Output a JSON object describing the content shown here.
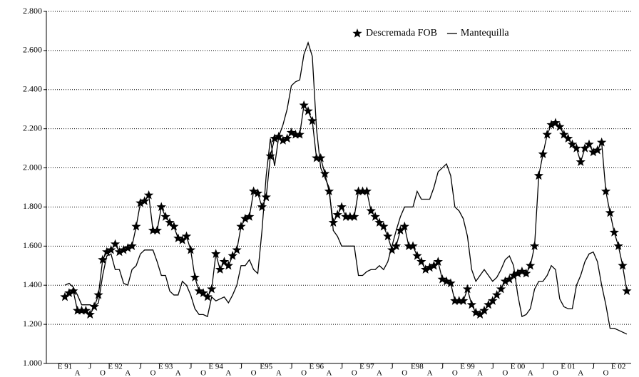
{
  "chart_data": {
    "type": "line",
    "categories": [
      "E 91",
      null,
      null,
      "A",
      null,
      null,
      "J",
      null,
      null,
      "O",
      null,
      null,
      "E 92",
      null,
      null,
      "A",
      null,
      null,
      "J",
      null,
      null,
      "O",
      null,
      null,
      "E 93",
      null,
      null,
      "A",
      null,
      null,
      "J",
      null,
      null,
      "O",
      null,
      null,
      "E 94",
      null,
      null,
      "A",
      null,
      null,
      "J",
      null,
      null,
      "O",
      null,
      null,
      "E95",
      null,
      null,
      "A",
      null,
      null,
      "J",
      null,
      null,
      "O",
      null,
      null,
      "E 96",
      null,
      null,
      "A",
      null,
      null,
      "J",
      null,
      null,
      "O",
      null,
      null,
      "E 97",
      null,
      null,
      "A",
      null,
      null,
      "J",
      null,
      null,
      "O",
      null,
      null,
      "E98",
      null,
      null,
      "A",
      null,
      null,
      "J",
      null,
      null,
      "O",
      null,
      null,
      "E 99",
      null,
      null,
      "A",
      null,
      null,
      "J",
      null,
      null,
      "O",
      null,
      null,
      "E 00",
      null,
      null,
      "A",
      null,
      null,
      "J",
      null,
      null,
      "O",
      null,
      null,
      "E 01",
      null,
      null,
      "A",
      null,
      null,
      "J",
      null,
      null,
      "O",
      null,
      null,
      "E 02",
      null,
      null
    ],
    "series": [
      {
        "name": "Descremada FOB",
        "color": "#000000",
        "marker": "star",
        "values": [
          1.34,
          1.36,
          1.37,
          1.27,
          1.27,
          1.27,
          1.25,
          1.29,
          1.35,
          1.53,
          1.57,
          1.58,
          1.61,
          1.57,
          1.58,
          1.59,
          1.6,
          1.7,
          1.82,
          1.83,
          1.86,
          1.68,
          1.68,
          1.8,
          1.75,
          1.72,
          1.7,
          1.64,
          1.63,
          1.65,
          1.58,
          1.44,
          1.37,
          1.36,
          1.34,
          1.38,
          1.56,
          1.48,
          1.52,
          1.5,
          1.55,
          1.58,
          1.7,
          1.74,
          1.75,
          1.88,
          1.87,
          1.8,
          1.85,
          2.06,
          2.15,
          2.16,
          2.14,
          2.15,
          2.18,
          2.17,
          2.17,
          2.32,
          2.29,
          2.24,
          2.05,
          2.05,
          1.97,
          1.88,
          1.72,
          1.76,
          1.8,
          1.75,
          1.75,
          1.75,
          1.88,
          1.88,
          1.88,
          1.78,
          1.75,
          1.72,
          1.7,
          1.65,
          1.58,
          1.6,
          1.68,
          1.7,
          1.6,
          1.6,
          1.55,
          1.52,
          1.48,
          1.49,
          1.5,
          1.52,
          1.43,
          1.42,
          1.41,
          1.32,
          1.32,
          1.32,
          1.38,
          1.3,
          1.26,
          1.25,
          1.27,
          1.3,
          1.32,
          1.35,
          1.38,
          1.42,
          1.43,
          1.45,
          1.46,
          1.47,
          1.46,
          1.5,
          1.6,
          1.96,
          2.07,
          2.17,
          2.22,
          2.23,
          2.21,
          2.17,
          2.15,
          2.12,
          2.1,
          2.03,
          2.1,
          2.12,
          2.08,
          2.09,
          2.13,
          1.88,
          1.77,
          1.67,
          1.6,
          1.5,
          1.37
        ]
      },
      {
        "name": "Mantequilla",
        "color": "#000000",
        "marker": "none",
        "values": [
          1.4,
          1.41,
          1.39,
          1.35,
          1.3,
          1.3,
          1.3,
          1.29,
          1.31,
          1.45,
          1.55,
          1.56,
          1.48,
          1.48,
          1.41,
          1.4,
          1.48,
          1.5,
          1.56,
          1.58,
          1.58,
          1.58,
          1.52,
          1.45,
          1.45,
          1.37,
          1.35,
          1.35,
          1.42,
          1.4,
          1.35,
          1.28,
          1.25,
          1.25,
          1.24,
          1.34,
          1.32,
          1.33,
          1.34,
          1.31,
          1.35,
          1.4,
          1.5,
          1.5,
          1.53,
          1.48,
          1.46,
          1.68,
          1.96,
          2.15,
          2.01,
          2.16,
          2.22,
          2.3,
          2.42,
          2.44,
          2.45,
          2.58,
          2.64,
          2.57,
          2.2,
          2.0,
          1.95,
          1.9,
          1.68,
          1.65,
          1.6,
          1.6,
          1.6,
          1.6,
          1.45,
          1.45,
          1.47,
          1.48,
          1.48,
          1.5,
          1.48,
          1.52,
          1.6,
          1.68,
          1.75,
          1.8,
          1.8,
          1.8,
          1.88,
          1.84,
          1.84,
          1.84,
          1.9,
          1.98,
          2.0,
          2.02,
          1.96,
          1.8,
          1.78,
          1.74,
          1.65,
          1.48,
          1.42,
          1.45,
          1.48,
          1.45,
          1.42,
          1.44,
          1.48,
          1.53,
          1.55,
          1.5,
          1.35,
          1.24,
          1.25,
          1.28,
          1.38,
          1.42,
          1.42,
          1.45,
          1.5,
          1.48,
          1.33,
          1.29,
          1.28,
          1.28,
          1.4,
          1.45,
          1.52,
          1.56,
          1.57,
          1.52,
          1.4,
          1.3,
          1.18,
          1.18,
          1.17,
          1.16,
          1.15
        ]
      }
    ],
    "ylim": [
      1.0,
      2.8
    ],
    "yticks": [
      {
        "value": 1.0,
        "label": "1.000"
      },
      {
        "value": 1.2,
        "label": "1.200"
      },
      {
        "value": 1.4,
        "label": "1.400"
      },
      {
        "value": 1.6,
        "label": "1.600"
      },
      {
        "value": 1.8,
        "label": "1.800"
      },
      {
        "value": 2.0,
        "label": "2.000"
      },
      {
        "value": 2.2,
        "label": "2.200"
      },
      {
        "value": 2.4,
        "label": "2.400"
      },
      {
        "value": 2.6,
        "label": "2.600"
      },
      {
        "value": 2.8,
        "label": "2.800"
      }
    ],
    "grid": true,
    "legend": "top-right"
  }
}
